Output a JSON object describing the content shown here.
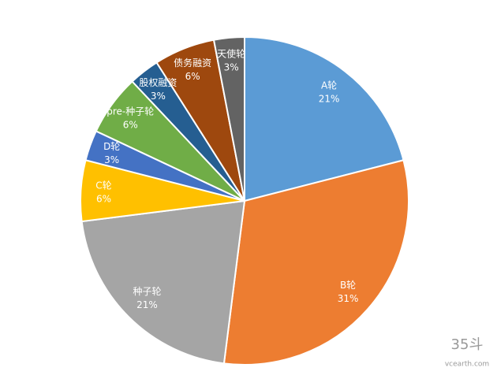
{
  "chart_data": {
    "type": "pie",
    "categories": [
      "A轮",
      "B轮",
      "种子轮",
      "C轮",
      "D轮",
      "pre-种子轮",
      "股权融资",
      "债务融资",
      "天使轮"
    ],
    "values": [
      21,
      31,
      21,
      6,
      3,
      6,
      3,
      6,
      3
    ],
    "value_labels": [
      "21%",
      "31%",
      "21%",
      "6%",
      "3%",
      "6%",
      "3%",
      "6%",
      "3%"
    ],
    "colors": [
      "#5b9bd5",
      "#ed7d31",
      "#a5a5a5",
      "#ffc000",
      "#4472c4",
      "#70ad47",
      "#255e91",
      "#9e480e",
      "#636363"
    ]
  },
  "watermark": {
    "logo": "35斗",
    "site": "vcearth.com"
  }
}
